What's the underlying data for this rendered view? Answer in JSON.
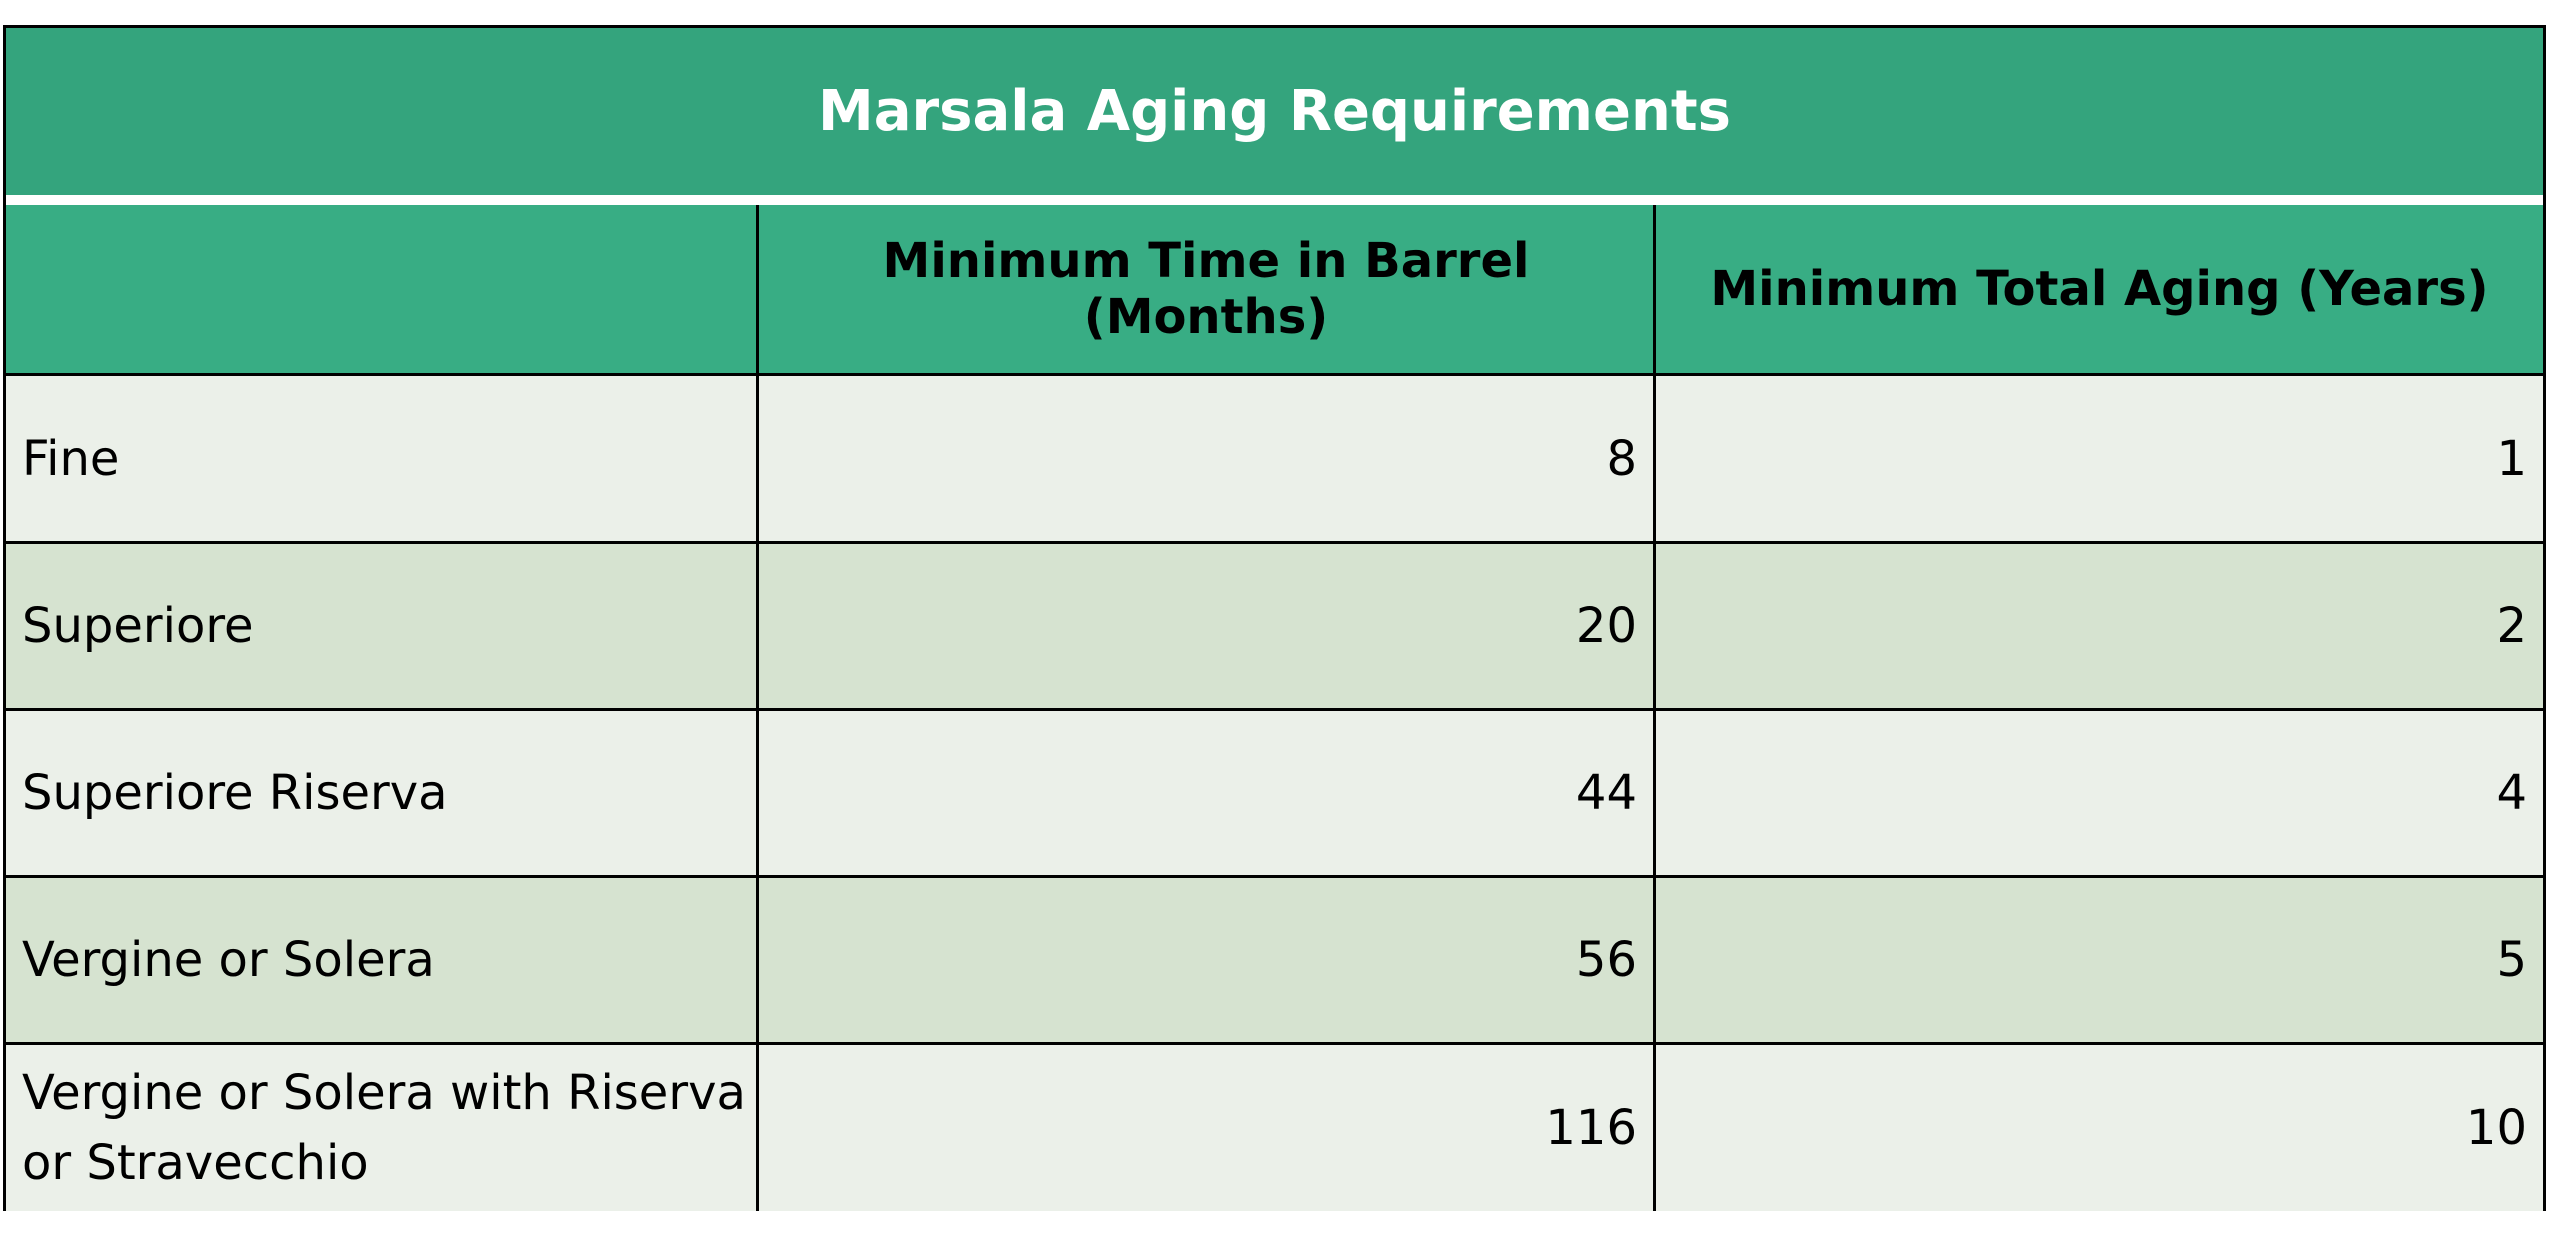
{
  "chart_data": {
    "type": "table",
    "title": "Marsala Aging Requirements",
    "columns": [
      "",
      "Minimum Time in Barrel (Months)",
      "Minimum Total Aging (Years)"
    ],
    "rows": [
      {
        "label": "Fine",
        "barrel": "8",
        "total": "1"
      },
      {
        "label": "Superiore",
        "barrel": "20",
        "total": "2"
      },
      {
        "label": "Superiore Riserva",
        "barrel": "44",
        "total": "4"
      },
      {
        "label": "Vergine or Solera",
        "barrel": "56",
        "total": "5"
      },
      {
        "label": "Vergine or Solera with Riserva or Stravecchio",
        "barrel": "116",
        "total": "10"
      }
    ]
  },
  "colors": {
    "title_bg": "#34a47d",
    "header_bg": "#38ad84",
    "row_light": "#ebf0e9",
    "row_dark": "#d6e3d0"
  }
}
